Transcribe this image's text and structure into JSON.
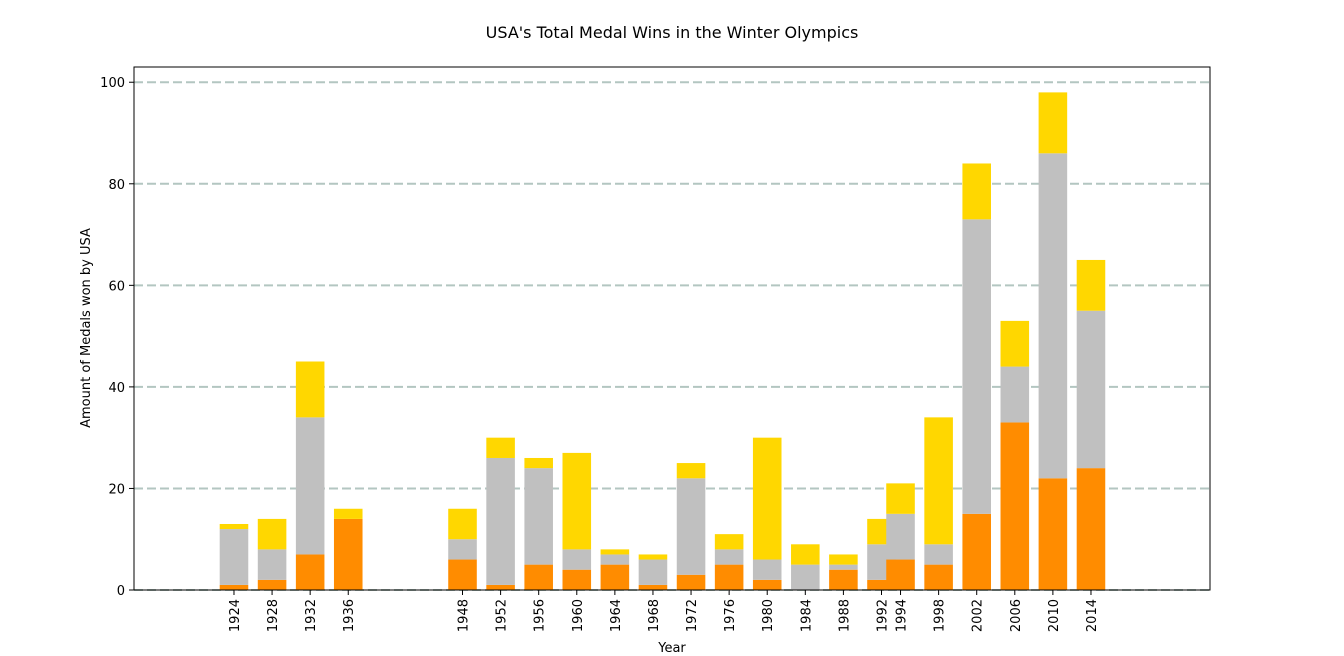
{
  "chart_data": {
    "type": "bar",
    "stacked": true,
    "title": "USA's Total Medal Wins in the Winter Olympics",
    "xlabel": "Year",
    "ylabel": "Amount of Medals won by USA",
    "ylim": [
      0,
      103
    ],
    "xlim": [
      1913.5,
      2026.5
    ],
    "yticks": [
      0,
      20,
      40,
      60,
      80,
      100
    ],
    "grid": "y-dashed",
    "legend": "none",
    "bar_width": 3,
    "x": [
      1924,
      1928,
      1932,
      1936,
      1948,
      1952,
      1956,
      1960,
      1964,
      1968,
      1972,
      1976,
      1980,
      1984,
      1988,
      1992,
      1994,
      1998,
      2002,
      2006,
      2010,
      2014
    ],
    "series": [
      {
        "values": [
          1,
          2,
          7,
          14,
          6,
          1,
          5,
          4,
          5,
          1,
          3,
          5,
          2,
          0,
          4,
          2,
          6,
          5,
          15,
          33,
          22,
          24
        ],
        "color": "#ff8c00"
      },
      {
        "values": [
          11,
          6,
          27,
          0,
          4,
          25,
          19,
          4,
          2,
          5,
          19,
          3,
          4,
          5,
          1,
          7,
          9,
          4,
          58,
          11,
          64,
          31
        ],
        "color": "#c0c0c0"
      },
      {
        "values": [
          1,
          6,
          11,
          2,
          6,
          4,
          2,
          19,
          1,
          1,
          3,
          3,
          24,
          4,
          2,
          5,
          6,
          25,
          11,
          9,
          12,
          10
        ],
        "color": "#ffd700"
      }
    ]
  },
  "colors": {
    "grid": "#b3c6c1",
    "frame": "#000000"
  }
}
